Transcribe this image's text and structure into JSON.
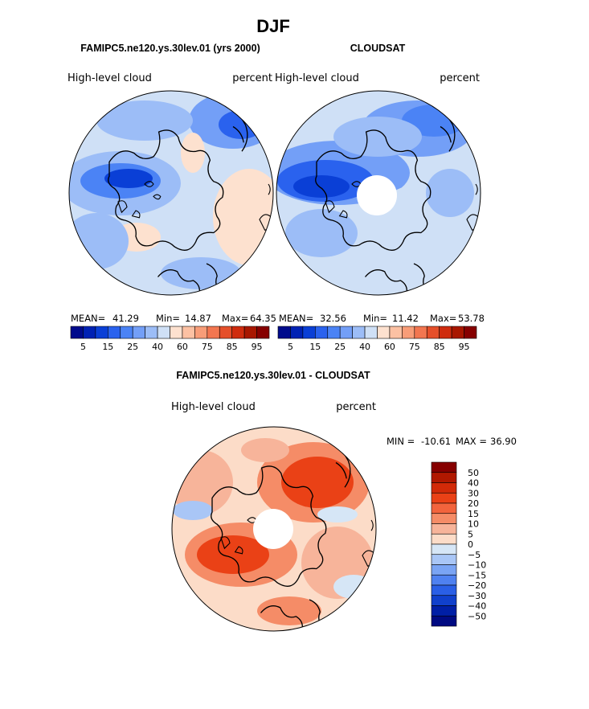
{
  "title": "DJF",
  "panels": [
    {
      "id": "model",
      "header": "FAMIPC5.ne120.ys.30lev.01 (yrs 2000)",
      "left_label": "High-level cloud",
      "right_label": "percent",
      "stats": {
        "mean_label": "MEAN=",
        "mean": "41.29",
        "min_label": "Min=",
        "min": "14.87",
        "max_label": "Max=",
        "max": "64.35"
      },
      "has_polar_gap": false
    },
    {
      "id": "obs",
      "header": "CLOUDSAT",
      "left_label": "High-level cloud",
      "right_label": "percent",
      "stats": {
        "mean_label": "MEAN=",
        "mean": "32.56",
        "min_label": "Min=",
        "min": "11.42",
        "max_label": "Max=",
        "max": "53.78"
      },
      "has_polar_gap": true
    },
    {
      "id": "diff",
      "header": "FAMIPC5.ne120.ys.30lev.01 - CLOUDSAT",
      "left_label": "High-level cloud",
      "right_label": "percent",
      "stats": {
        "min_label": "MIN =",
        "min": "-10.61",
        "max_label": "MAX =",
        "max": "36.90"
      },
      "has_polar_gap": true
    }
  ],
  "chart_data": [
    {
      "type": "heatmap",
      "projection": "north-polar-stereographic",
      "title": "FAMIPC5.ne120.ys.30lev.01 (yrs 2000)",
      "variable": "High-level cloud",
      "units": "percent",
      "mean": 41.29,
      "min": 14.87,
      "max": 64.35,
      "colorbar_levels": [
        5,
        10,
        15,
        20,
        25,
        30,
        40,
        50,
        60,
        70,
        75,
        80,
        85,
        90,
        95
      ],
      "colorbar_tick_labels": [
        "5",
        "15",
        "25",
        "40",
        "60",
        "75",
        "85",
        "95"
      ]
    },
    {
      "type": "heatmap",
      "projection": "north-polar-stereographic",
      "title": "CLOUDSAT",
      "variable": "High-level cloud",
      "units": "percent",
      "mean": 32.56,
      "min": 11.42,
      "max": 53.78,
      "colorbar_levels": [
        5,
        10,
        15,
        20,
        25,
        30,
        40,
        50,
        60,
        70,
        75,
        80,
        85,
        90,
        95
      ],
      "colorbar_tick_labels": [
        "5",
        "15",
        "25",
        "40",
        "60",
        "75",
        "85",
        "95"
      ]
    },
    {
      "type": "heatmap",
      "projection": "north-polar-stereographic",
      "title": "FAMIPC5.ne120.ys.30lev.01 - CLOUDSAT",
      "variable": "High-level cloud",
      "units": "percent",
      "min": -10.61,
      "max": 36.9,
      "colorbar_levels": [
        50,
        40,
        30,
        20,
        15,
        10,
        5,
        0,
        -5,
        -10,
        -15,
        -20,
        -30,
        -40,
        -50
      ],
      "colorbar_tick_labels": [
        "50",
        "40",
        "30",
        "20",
        "15",
        "10",
        "5",
        "0",
        "−5",
        "−10",
        "−15",
        "−20",
        "−30",
        "−40",
        "−50"
      ]
    }
  ],
  "colors": {
    "abs_scale": [
      "#000b8c",
      "#0022b4",
      "#0a3fd6",
      "#2a62ee",
      "#4b83f5",
      "#739ff7",
      "#9cbdf7",
      "#cfe0f6",
      "#fde1cf",
      "#fcc1a3",
      "#f89d78",
      "#f27650",
      "#e54f2a",
      "#cf2c0e",
      "#a81700",
      "#860000"
    ],
    "diff_scale": [
      "#860000",
      "#b01800",
      "#d22a08",
      "#ea4116",
      "#f2643d",
      "#f58c67",
      "#f7b49a",
      "#fcdcc8",
      "#d6e6f6",
      "#a9c6f6",
      "#7aa4f4",
      "#4f81f0",
      "#2a5fe6",
      "#1040cc",
      "#001fa6",
      "#000a82"
    ],
    "coast": "#000000"
  }
}
